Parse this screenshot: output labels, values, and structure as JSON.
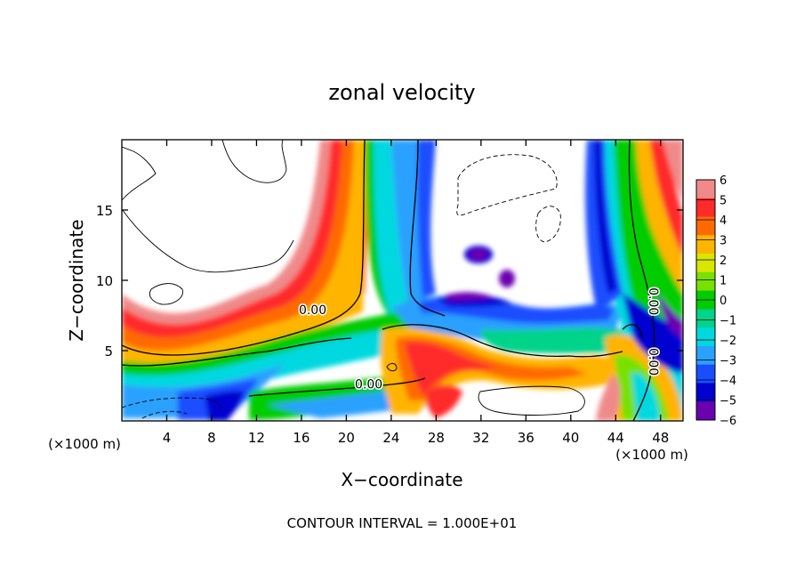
{
  "chart_data": {
    "type": "heatmap",
    "title": "zonal velocity",
    "xlabel": "X−coordinate",
    "ylabel": "Z−coordinate",
    "x_unit": "(×1000 m)",
    "x_unit_right": "(×1000 m)",
    "footer": "CONTOUR INTERVAL = 1.000E+01",
    "xlim": [
      0,
      50
    ],
    "ylim": [
      0,
      20
    ],
    "x_ticks": [
      4,
      8,
      12,
      16,
      20,
      24,
      28,
      32,
      36,
      40,
      44,
      48
    ],
    "y_ticks": [
      5,
      10,
      15
    ],
    "colorbar": {
      "ticks": [
        "6",
        "5",
        "4",
        "3",
        "2",
        "1",
        "0",
        "−1",
        "−2",
        "−3",
        "−4",
        "−5",
        "−6"
      ],
      "colors": [
        "#f08a8a",
        "#ff2a2a",
        "#ff6a00",
        "#ffb400",
        "#d8e600",
        "#78e100",
        "#00cc00",
        "#00d38a",
        "#00d8e0",
        "#2aa0ff",
        "#1a4dff",
        "#0000d0",
        "#6a00b0"
      ]
    },
    "contour_labels": [
      {
        "text": "0.00",
        "x": 17,
        "y": 7.6
      },
      {
        "text": "0.00",
        "x": 22,
        "y": 2.3
      },
      {
        "text": "0.00",
        "x": 47,
        "y": 8.5
      },
      {
        "text": "0.00",
        "x": 47,
        "y": 4.2
      }
    ]
  }
}
